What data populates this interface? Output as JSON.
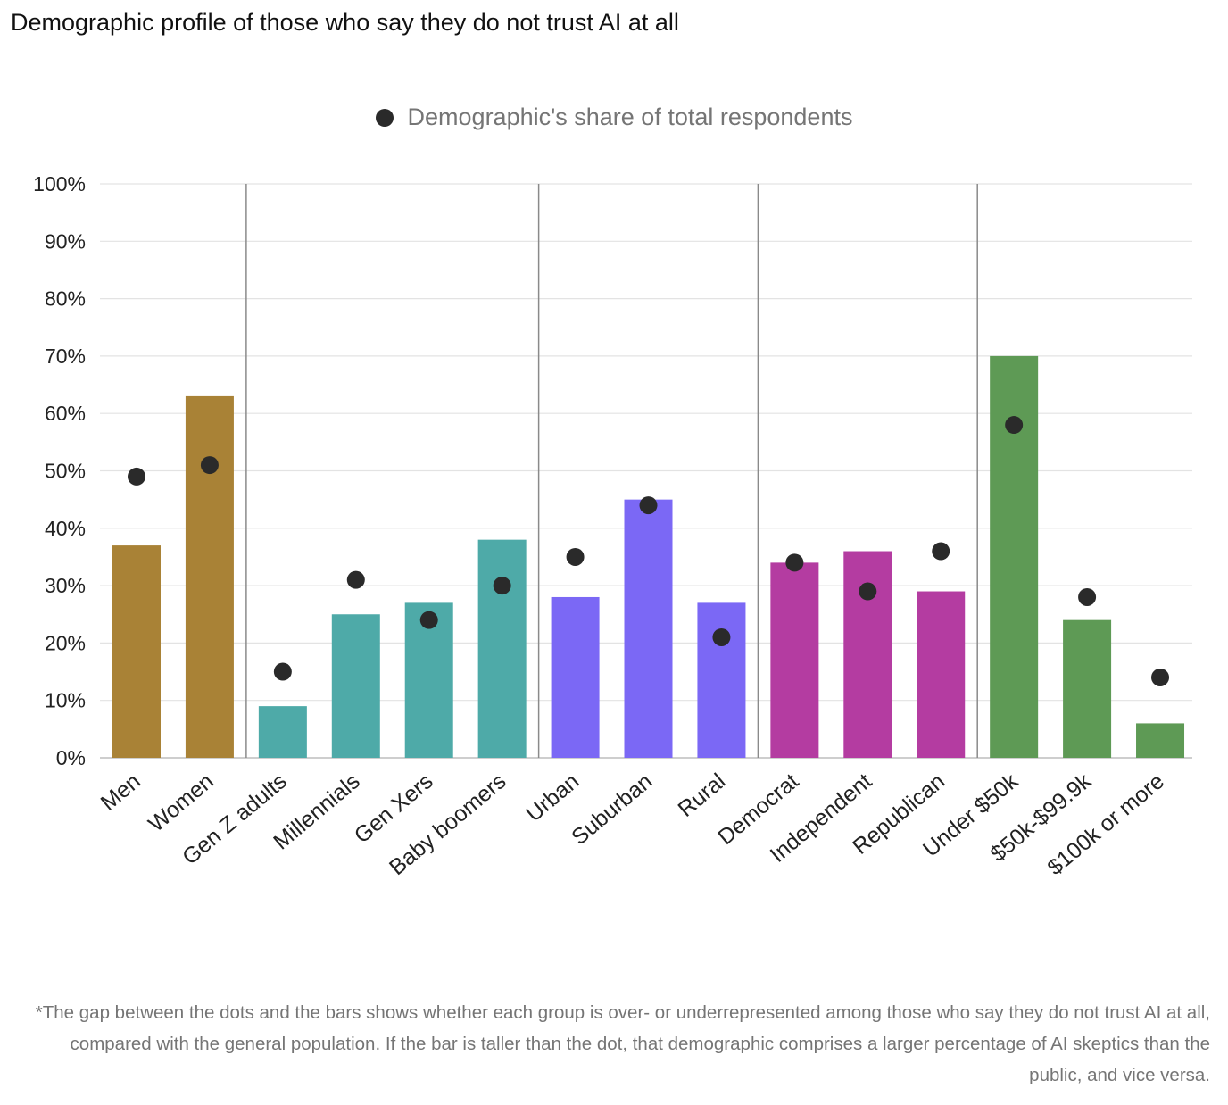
{
  "title": "Demographic profile of those who say they do not trust AI at all",
  "legend": {
    "label": "Demographic's share of total respondents",
    "marker_color": "#2a2a2a"
  },
  "footnote": "*The gap between the dots and the bars shows whether each group is over- or underrepresented among those who say they do not trust AI at all, compared with the general population. If the bar is taller than the dot, that demographic comprises a larger percentage of AI skeptics than the public, and vice versa.",
  "chart_data": {
    "type": "bar",
    "title": "Demographic profile of those who say they do not trust AI at all",
    "xlabel": "",
    "ylabel": "",
    "ylim": [
      0,
      100
    ],
    "y_ticks": [
      "0%",
      "10%",
      "20%",
      "30%",
      "40%",
      "50%",
      "60%",
      "70%",
      "80%",
      "90%",
      "100%"
    ],
    "grid": true,
    "legend_position": "top-center",
    "categories": [
      "Men",
      "Women",
      "Gen Z adults",
      "Millennials",
      "Gen Xers",
      "Baby boomers",
      "Urban",
      "Suburban",
      "Rural",
      "Democrat",
      "Independent",
      "Republican",
      "Under $50k",
      "$50k-$99.9k",
      "$100k or more"
    ],
    "groups": [
      {
        "members": [
          0,
          1
        ],
        "color": "#a98236"
      },
      {
        "members": [
          2,
          3,
          4,
          5
        ],
        "color": "#4eaaa8"
      },
      {
        "members": [
          6,
          7,
          8
        ],
        "color": "#7b68f5"
      },
      {
        "members": [
          9,
          10,
          11
        ],
        "color": "#b43ca1"
      },
      {
        "members": [
          12,
          13,
          14
        ],
        "color": "#5e9a55"
      }
    ],
    "series": [
      {
        "values": [
          37,
          63,
          9,
          25,
          27,
          38,
          28,
          45,
          27,
          34,
          36,
          29,
          70,
          24,
          6
        ]
      },
      {
        "name": "Demographic's share of total respondents",
        "marker": "dot",
        "values": [
          49,
          51,
          15,
          31,
          24,
          30,
          35,
          44,
          21,
          34,
          29,
          36,
          58,
          28,
          14
        ]
      }
    ]
  }
}
